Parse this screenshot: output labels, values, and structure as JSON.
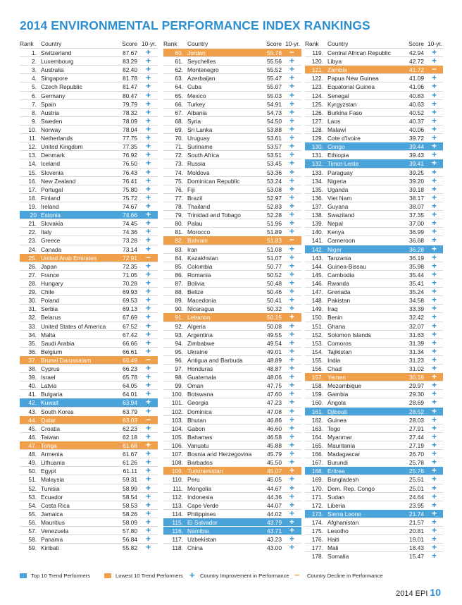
{
  "title": "2014 ENVIRONMENTAL PERFORMANCE INDEX RANKINGS",
  "headers": {
    "rank": "Rank",
    "country": "Country",
    "score": "Score",
    "trend": "10-yr."
  },
  "colors": {
    "accent": "#2e8fce",
    "top_trend": "#4aa3d9",
    "lowest_trend": "#f0a04b"
  },
  "columns": [
    [
      [
        "1.",
        "Switzerland",
        "87.67",
        "+",
        ""
      ],
      [
        "2.",
        "Luxembourg",
        "83.29",
        "+",
        ""
      ],
      [
        "3.",
        "Australia",
        "82.40",
        "+",
        ""
      ],
      [
        "4.",
        "Singapore",
        "81.78",
        "+",
        ""
      ],
      [
        "5.",
        "Czech Republic",
        "81.47",
        "+",
        ""
      ],
      [
        "6.",
        "Germany",
        "80.47",
        "+",
        ""
      ],
      [
        "7.",
        "Spain",
        "79.79",
        "+",
        ""
      ],
      [
        "8.",
        "Austria",
        "78.32",
        "+",
        ""
      ],
      [
        "9.",
        "Sweden",
        "78.09",
        "+",
        ""
      ],
      [
        "10.",
        "Norway",
        "78.04",
        "+",
        ""
      ],
      [
        "11.",
        "Netherlands",
        "77.75",
        "+",
        ""
      ],
      [
        "12.",
        "United Kingdom",
        "77.35",
        "+",
        ""
      ],
      [
        "13.",
        "Denmark",
        "76.92",
        "+",
        ""
      ],
      [
        "14.",
        "Iceland",
        "76.50",
        "+",
        ""
      ],
      [
        "15.",
        "Slovenia",
        "76.43",
        "+",
        ""
      ],
      [
        "16.",
        "New Zealand",
        "76.41",
        "+",
        ""
      ],
      [
        "17.",
        "Portugal",
        "75.80",
        "+",
        ""
      ],
      [
        "18.",
        "Finland",
        "75.72",
        "+",
        ""
      ],
      [
        "19.",
        "Ireland",
        "74.67",
        "+",
        ""
      ],
      [
        "20",
        "Estonia",
        "74.66",
        "+",
        "blue"
      ],
      [
        "21.",
        "Slovakia",
        "74.45",
        "+",
        ""
      ],
      [
        "22.",
        "Italy",
        "74.36",
        "+",
        ""
      ],
      [
        "23.",
        "Greece",
        "73.28",
        "+",
        ""
      ],
      [
        "24.",
        "Canada",
        "73.14",
        "+",
        ""
      ],
      [
        "25.",
        "United Arab Emirates",
        "72.91",
        "−",
        "orange"
      ],
      [
        "26.",
        "Japan",
        "72.35",
        "+",
        ""
      ],
      [
        "27.",
        "France",
        "71.05",
        "+",
        ""
      ],
      [
        "28.",
        "Hungary",
        "70.28",
        "+",
        ""
      ],
      [
        "29.",
        "Chile",
        "69.93",
        "+",
        ""
      ],
      [
        "30.",
        "Poland",
        "69.53",
        "+",
        ""
      ],
      [
        "31.",
        "Serbia",
        "69.13",
        "+",
        ""
      ],
      [
        "32.",
        "Belarus",
        "67.69",
        "+",
        ""
      ],
      [
        "33.",
        "United States of America",
        "67.52",
        "+",
        ""
      ],
      [
        "34.",
        "Malta",
        "67.42",
        "+",
        ""
      ],
      [
        "35.",
        "Saudi Arabia",
        "66.66",
        "+",
        ""
      ],
      [
        "36.",
        "Belgium",
        "66.61",
        "+",
        ""
      ],
      [
        "37.",
        "Brunei Darussalam",
        "66.49",
        "−",
        "orange"
      ],
      [
        "38.",
        "Cyprus",
        "66.23",
        "+",
        ""
      ],
      [
        "39.",
        "Israel",
        "65.78",
        "+",
        ""
      ],
      [
        "40.",
        "Latvia",
        "64.05",
        "+",
        ""
      ],
      [
        "41.",
        "Bulgaria",
        "64.01",
        "+",
        ""
      ],
      [
        "42.",
        "Kuwait",
        "63.94",
        "+",
        "blue"
      ],
      [
        "43.",
        "South Korea",
        "63.79",
        "+",
        ""
      ],
      [
        "44.",
        "Qatar",
        "63.03",
        "−",
        "orange"
      ],
      [
        "45.",
        "Croatia",
        "62.23",
        "+",
        ""
      ],
      [
        "46.",
        "Taiwan",
        "62.18",
        "+",
        ""
      ],
      [
        "47.",
        "Tonga",
        "61.68",
        "+",
        "orange"
      ],
      [
        "48.",
        "Armenia",
        "61.67",
        "+",
        ""
      ],
      [
        "49.",
        "Lithuania",
        "61.26",
        "+",
        ""
      ],
      [
        "50.",
        "Egypt",
        "61.11",
        "+",
        ""
      ],
      [
        "51.",
        "Malaysia",
        "59.31",
        "+",
        ""
      ],
      [
        "52.",
        "Tunisia",
        "58.99",
        "+",
        ""
      ],
      [
        "53.",
        "Ecuador",
        "58.54",
        "+",
        ""
      ],
      [
        "54.",
        "Costa Rica",
        "58.53",
        "+",
        ""
      ],
      [
        "55.",
        "Jamaica",
        "58.26",
        "+",
        ""
      ],
      [
        "56.",
        "Mauritius",
        "58.09",
        "+",
        ""
      ],
      [
        "57.",
        "Venezuela",
        "57.80",
        "+",
        ""
      ],
      [
        "58.",
        "Panama",
        "56.84",
        "+",
        ""
      ],
      [
        "59.",
        "Kiribati",
        "55.82",
        "+",
        ""
      ]
    ],
    [
      [
        "60.",
        "Jordan",
        "55.78",
        "−",
        "orange"
      ],
      [
        "61.",
        "Seychelles",
        "55.56",
        "+",
        ""
      ],
      [
        "62.",
        "Montenegro",
        "55.52",
        "+",
        ""
      ],
      [
        "63.",
        "Azerbaijan",
        "55.47",
        "+",
        ""
      ],
      [
        "64.",
        "Cuba",
        "55.07",
        "+",
        ""
      ],
      [
        "65.",
        "Mexico",
        "55.03",
        "+",
        ""
      ],
      [
        "66.",
        "Turkey",
        "54.91",
        "+",
        ""
      ],
      [
        "67.",
        "Albania",
        "54.73",
        "+",
        ""
      ],
      [
        "68.",
        "Syria",
        "54.50",
        "+",
        ""
      ],
      [
        "69.",
        "Sri Lanka",
        "53.88",
        "+",
        ""
      ],
      [
        "70.",
        "Uruguay",
        "53.61",
        "+",
        ""
      ],
      [
        "71.",
        "Suriname",
        "53.57",
        "+",
        ""
      ],
      [
        "72.",
        "South Africa",
        "53.51",
        "+",
        ""
      ],
      [
        "73.",
        "Russia",
        "53.45",
        "+",
        ""
      ],
      [
        "74.",
        "Moldova",
        "53.36",
        "+",
        ""
      ],
      [
        "75.",
        "Dominican Republic",
        "53.24",
        "+",
        ""
      ],
      [
        "76.",
        "Fiji",
        "53.08",
        "+",
        ""
      ],
      [
        "77.",
        "Brazil",
        "52.97",
        "+",
        ""
      ],
      [
        "78.",
        "Thailand",
        "52.83",
        "+",
        ""
      ],
      [
        "79.",
        "Trinidad and Tobago",
        "52.28",
        "+",
        ""
      ],
      [
        "80.",
        "Palau",
        "51.96",
        "+",
        ""
      ],
      [
        "81.",
        "Morocco",
        "51.89",
        "+",
        ""
      ],
      [
        "82.",
        "Bahrain",
        "51.83",
        "−",
        "orange"
      ],
      [
        "83.",
        "Iran",
        "51.08",
        "+",
        ""
      ],
      [
        "84.",
        "Kazakhstan",
        "51.07",
        "+",
        ""
      ],
      [
        "85.",
        "Colombia",
        "50.77",
        "+",
        ""
      ],
      [
        "86.",
        "Romania",
        "50.52",
        "+",
        ""
      ],
      [
        "87.",
        "Bolivia",
        "50.48",
        "+",
        ""
      ],
      [
        "88.",
        "Belize",
        "50.46",
        "+",
        ""
      ],
      [
        "89.",
        "Macedonia",
        "50.41",
        "+",
        ""
      ],
      [
        "90.",
        "Nicaragua",
        "50.32",
        "+",
        ""
      ],
      [
        "91.",
        "Lebanon",
        "50.15",
        "+",
        "orange"
      ],
      [
        "92.",
        "Algeria",
        "50.08",
        "+",
        ""
      ],
      [
        "93.",
        "Argentina",
        "49.55",
        "+",
        ""
      ],
      [
        "94.",
        "Zimbabwe",
        "49.54",
        "+",
        ""
      ],
      [
        "95.",
        "Ukraine",
        "49.01",
        "+",
        ""
      ],
      [
        "96.",
        "Antigua and Barbuda",
        "48.89",
        "+",
        ""
      ],
      [
        "97.",
        "Honduras",
        "48.87",
        "+",
        ""
      ],
      [
        "98.",
        "Guatemala",
        "48.06",
        "+",
        ""
      ],
      [
        "99.",
        "Oman",
        "47.75",
        "+",
        ""
      ],
      [
        "100.",
        "Botswana",
        "47.60",
        "+",
        ""
      ],
      [
        "101.",
        "Georgia",
        "47.23",
        "+",
        ""
      ],
      [
        "102.",
        "Dominica",
        "47.08",
        "+",
        ""
      ],
      [
        "103.",
        "Bhutan",
        "46.86",
        "+",
        ""
      ],
      [
        "104.",
        "Gabon",
        "46.60",
        "+",
        ""
      ],
      [
        "105.",
        "Bahamas",
        "46.58",
        "+",
        ""
      ],
      [
        "106.",
        "Vanuatu",
        "45.88",
        "+",
        ""
      ],
      [
        "107.",
        "Bosnia and Herzegovina",
        "45.79",
        "+",
        ""
      ],
      [
        "108.",
        "Barbados",
        "45.50",
        "+",
        ""
      ],
      [
        "109.",
        "Turkmenistan",
        "45.07",
        "+",
        "orange"
      ],
      [
        "110.",
        "Peru",
        "45.05",
        "+",
        ""
      ],
      [
        "111.",
        "Mongolia",
        "44.67",
        "+",
        ""
      ],
      [
        "112.",
        "Indonesia",
        "44.36",
        "+",
        ""
      ],
      [
        "113.",
        "Cape Verde",
        "44.07",
        "+",
        ""
      ],
      [
        "114.",
        "Philippines",
        "44.02",
        "+",
        ""
      ],
      [
        "115.",
        "El Salvador",
        "43.79",
        "+",
        "blue"
      ],
      [
        "116.",
        "Namibia",
        "43.71",
        "+",
        "blue"
      ],
      [
        "117.",
        "Uzbekistan",
        "43.23",
        "+",
        ""
      ],
      [
        "118.",
        "China",
        "43.00",
        "+",
        ""
      ]
    ],
    [
      [
        "119.",
        "Central African Republic",
        "42.94",
        "+",
        ""
      ],
      [
        "120.",
        "Libya",
        "42.72",
        "+",
        ""
      ],
      [
        "121.",
        "Zambia",
        "41.72",
        "−",
        "orange"
      ],
      [
        "122.",
        "Papua New Guinea",
        "41.09",
        "+",
        ""
      ],
      [
        "123.",
        "Equatorial Guinea",
        "41.06",
        "+",
        ""
      ],
      [
        "124.",
        "Senegal",
        "40.83",
        "+",
        ""
      ],
      [
        "125.",
        "Kyrgyzstan",
        "40.63",
        "+",
        ""
      ],
      [
        "126.",
        "Burkina Faso",
        "40.52",
        "+",
        ""
      ],
      [
        "127.",
        "Laos",
        "40.37",
        "+",
        ""
      ],
      [
        "128.",
        "Malawi",
        "40.06",
        "+",
        ""
      ],
      [
        "129.",
        "Cote d'Ivoire",
        "39.72",
        "+",
        ""
      ],
      [
        "130.",
        "Congo",
        "39.44",
        "+",
        "blue"
      ],
      [
        "131.",
        "Ethiopia",
        "39.43",
        "+",
        ""
      ],
      [
        "132.",
        "Timor-Leste",
        "39.41",
        "+",
        "blue"
      ],
      [
        "133.",
        "Paraguay",
        "39.25",
        "+",
        ""
      ],
      [
        "134.",
        "Nigeria",
        "39.20",
        "+",
        ""
      ],
      [
        "135.",
        "Uganda",
        "39.18",
        "+",
        ""
      ],
      [
        "136.",
        "Viet Nam",
        "38.17",
        "+",
        ""
      ],
      [
        "137.",
        "Guyana",
        "38.07",
        "+",
        ""
      ],
      [
        "138.",
        "Swaziland",
        "37.35",
        "+",
        ""
      ],
      [
        "139.",
        "Nepal",
        "37.00",
        "+",
        ""
      ],
      [
        "140.",
        "Kenya",
        "36.99",
        "+",
        ""
      ],
      [
        "141.",
        "Cameroon",
        "36.68",
        "+",
        ""
      ],
      [
        "142.",
        "Niger",
        "36.28",
        "+",
        "blue"
      ],
      [
        "143.",
        "Tanzania",
        "36.19",
        "+",
        ""
      ],
      [
        "144.",
        "Guinea-Bissau",
        "35.98",
        "+",
        ""
      ],
      [
        "145.",
        "Cambodia",
        "35.44",
        "+",
        ""
      ],
      [
        "146.",
        "Rwanda",
        "35.41",
        "+",
        ""
      ],
      [
        "147.",
        "Grenada",
        "35.24",
        "+",
        ""
      ],
      [
        "148.",
        "Pakistan",
        "34.58",
        "+",
        ""
      ],
      [
        "149.",
        "Iraq",
        "33.39",
        "+",
        ""
      ],
      [
        "150.",
        "Benin",
        "32.42",
        "+",
        ""
      ],
      [
        "151.",
        "Ghana",
        "32.07",
        "+",
        ""
      ],
      [
        "152.",
        "Solomon Islands",
        "31.63",
        "+",
        ""
      ],
      [
        "153.",
        "Comoros",
        "31.39",
        "+",
        ""
      ],
      [
        "154.",
        "Tajikistan",
        "31.34",
        "+",
        ""
      ],
      [
        "155.",
        "India",
        "31.23",
        "+",
        ""
      ],
      [
        "156.",
        "Chad",
        "31.02",
        "+",
        ""
      ],
      [
        "157.",
        "Yemen",
        "30.16",
        "+",
        "orange"
      ],
      [
        "158.",
        "Mozambique",
        "29.97",
        "+",
        ""
      ],
      [
        "159.",
        "Gambia",
        "29.30",
        "+",
        ""
      ],
      [
        "160.",
        "Angola",
        "28.69",
        "+",
        ""
      ],
      [
        "161.",
        "Djibouti",
        "28.52",
        "+",
        "blue"
      ],
      [
        "162.",
        "Guinea",
        "28.03",
        "+",
        ""
      ],
      [
        "163.",
        "Togo",
        "27.91",
        "+",
        ""
      ],
      [
        "164.",
        "Myanmar",
        "27.44",
        "+",
        ""
      ],
      [
        "165.",
        "Mauritania",
        "27.19",
        "+",
        ""
      ],
      [
        "166.",
        "Madagascar",
        "26.70",
        "+",
        ""
      ],
      [
        "167.",
        "Burundi",
        "25.78",
        "+",
        ""
      ],
      [
        "168.",
        "Eritrea",
        "25.76",
        "+",
        "blue"
      ],
      [
        "169.",
        "Bangladesh",
        "25.61",
        "+",
        ""
      ],
      [
        "170.",
        "Dem. Rep. Congo",
        "25.01",
        "+",
        ""
      ],
      [
        "171.",
        "Sudan",
        "24.64",
        "+",
        ""
      ],
      [
        "172.",
        "Liberia",
        "23.95",
        "+",
        ""
      ],
      [
        "173.",
        "Sierra Leone",
        "21.74",
        "+",
        "blue"
      ],
      [
        "174.",
        "Afghanistan",
        "21.57",
        "+",
        ""
      ],
      [
        "175.",
        "Lesotho",
        "20.81",
        "+",
        ""
      ],
      [
        "176.",
        "Haiti",
        "19.01",
        "+",
        ""
      ],
      [
        "177.",
        "Mali",
        "18.43",
        "+",
        ""
      ],
      [
        "178.",
        "Somalia",
        "15.47",
        "+",
        ""
      ]
    ]
  ],
  "legend": {
    "top10": "Top 10 Trend Performers",
    "lowest10": "Lowest 10 Trend Performers",
    "improvement_symbol": "+",
    "improvement": "Country Improvement in Performance",
    "decline_symbol": "−",
    "decline": "Country Decline in Performance"
  },
  "footer": {
    "label": "2014 EPI",
    "page": "10"
  }
}
